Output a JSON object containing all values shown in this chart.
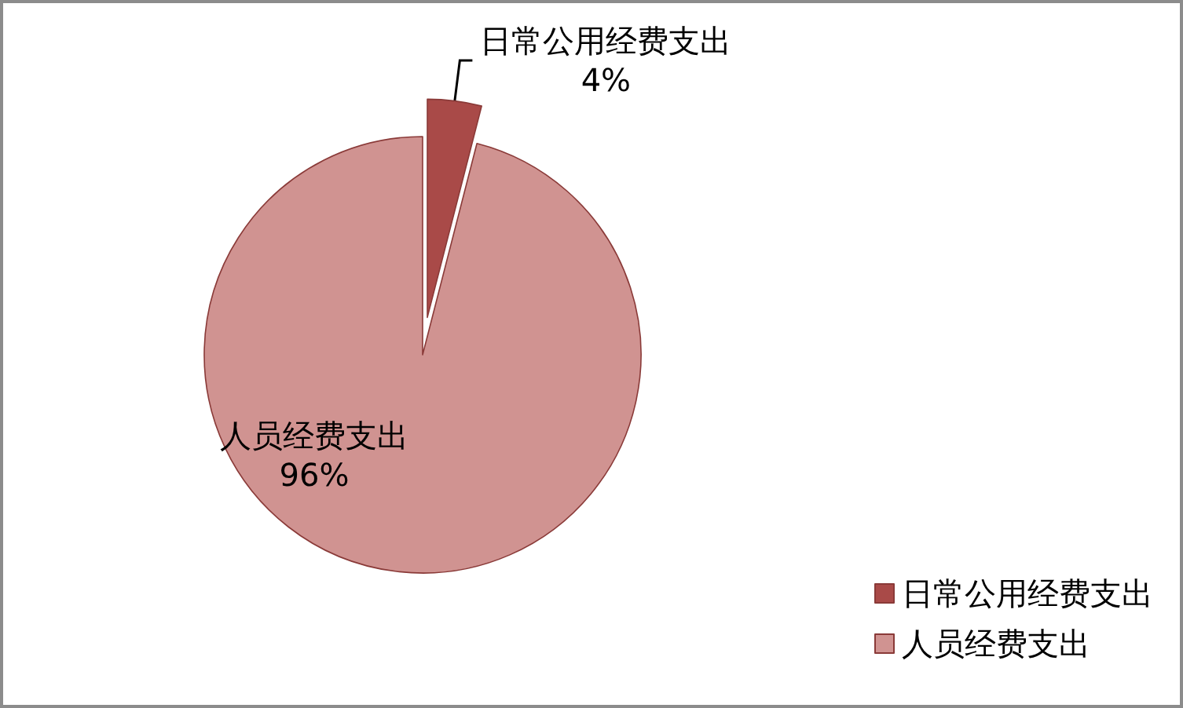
{
  "chart_data": {
    "type": "pie",
    "categories": [
      "日常公用经费支出",
      "人员经费支出"
    ],
    "values": [
      4,
      96
    ],
    "value_labels": [
      "4%",
      "96%"
    ],
    "colors": [
      "#a94a48",
      "#d09391"
    ],
    "legend": "bottom right"
  }
}
